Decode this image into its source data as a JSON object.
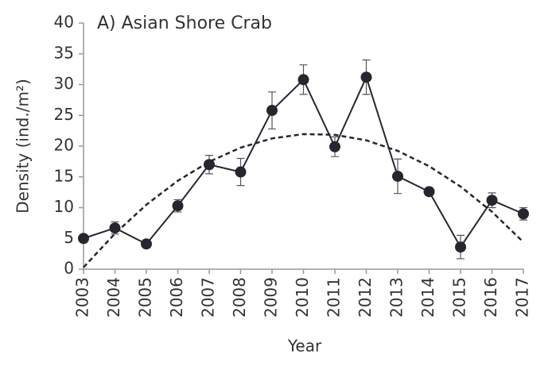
{
  "chart_data": {
    "type": "line",
    "title": "A) Asian Shore Crab",
    "x_label": "Year",
    "y_label": "Density (ind./m²)",
    "categories": [
      "2003",
      "2004",
      "2005",
      "2006",
      "2007",
      "2008",
      "2009",
      "2010",
      "2011",
      "2012",
      "2013",
      "2014",
      "2015",
      "2016",
      "2017"
    ],
    "values": [
      5.0,
      6.7,
      4.1,
      10.3,
      17.0,
      15.8,
      25.8,
      30.8,
      19.9,
      31.2,
      15.1,
      12.6,
      3.6,
      11.2,
      9.0
    ],
    "errors": [
      0.5,
      1.0,
      0.4,
      1.0,
      1.5,
      2.2,
      3.0,
      2.4,
      1.6,
      2.8,
      2.8,
      0.6,
      1.9,
      1.2,
      1.0
    ],
    "trend_values": [
      0.3,
      5.78,
      10.48,
      14.37,
      17.46,
      19.75,
      21.25,
      21.95,
      21.84,
      20.94,
      19.23,
      16.73,
      13.43,
      9.33,
      4.4
    ],
    "color": "#262630",
    "ylim": [
      0,
      40
    ],
    "yticks": [
      0,
      5,
      10,
      15,
      20,
      25,
      30,
      35,
      40
    ]
  }
}
